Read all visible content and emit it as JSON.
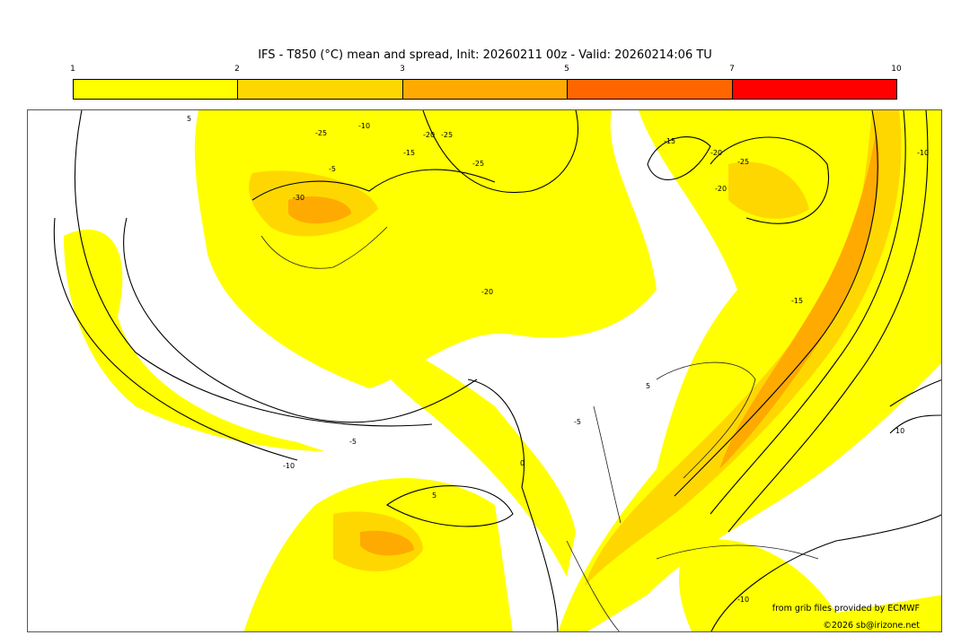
{
  "title": "IFS - T850 (°C) mean and spread, Init: 20260211 00z - Valid: 20260214:06 TU",
  "colorbar": {
    "ticks": [
      "1",
      "2",
      "3",
      "5",
      "7",
      "10"
    ],
    "colors": [
      "#ffff00",
      "#ffd700",
      "#ffaa00",
      "#ff6600",
      "#ff0000"
    ]
  },
  "contour_labels": [
    "5",
    "-5",
    "-10",
    "-15",
    "-20",
    "-25",
    "-25",
    "-20",
    "-15",
    "-15",
    "-10",
    "-5",
    "0",
    "5",
    "-5",
    "-10",
    "5",
    "10",
    "-10",
    "-25",
    "-20",
    "-20",
    "-25",
    "-30"
  ],
  "credits": {
    "source": "from grib files provided by ECMWF",
    "copyright": "©2026 sb@irizone.net"
  }
}
